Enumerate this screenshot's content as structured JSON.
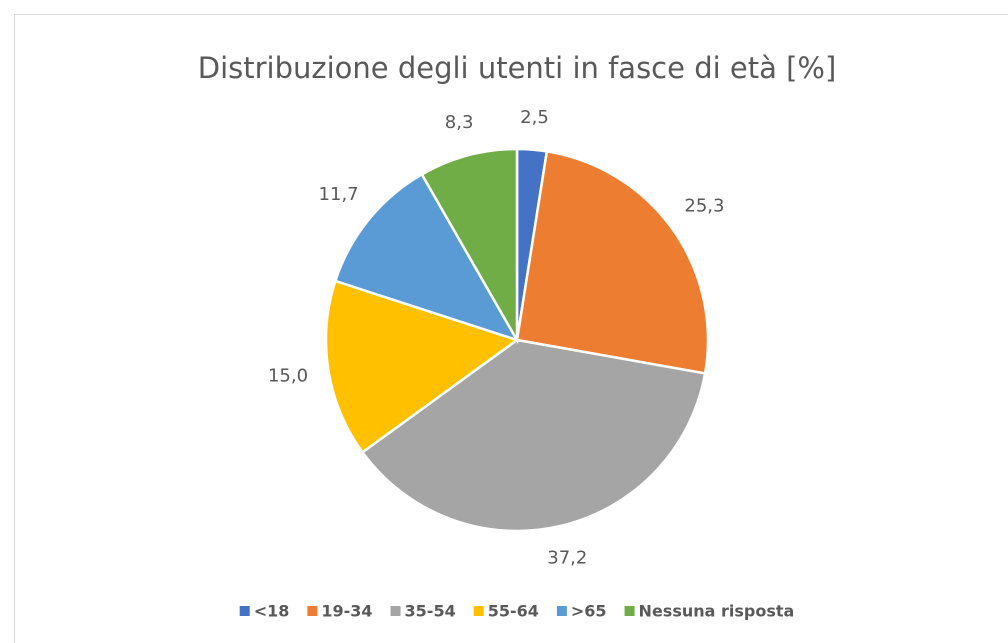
{
  "chart_data": {
    "type": "pie",
    "title": "Distribuzione degli utenti in fasce di età [%]",
    "categories": [
      "<18",
      "19-34",
      "35-54",
      "55-64",
      ">65",
      "Nessuna risposta"
    ],
    "values": [
      2.5,
      25.3,
      37.2,
      15.0,
      11.7,
      8.3
    ],
    "value_labels": [
      "2,5",
      "25,3",
      "37,2",
      "15,0",
      "11,7",
      "8,3"
    ],
    "colors": [
      "#4472c4",
      "#ed7d31",
      "#a5a5a5",
      "#ffc000",
      "#5b9bd5",
      "#70ad47"
    ],
    "legend": "bottom"
  }
}
